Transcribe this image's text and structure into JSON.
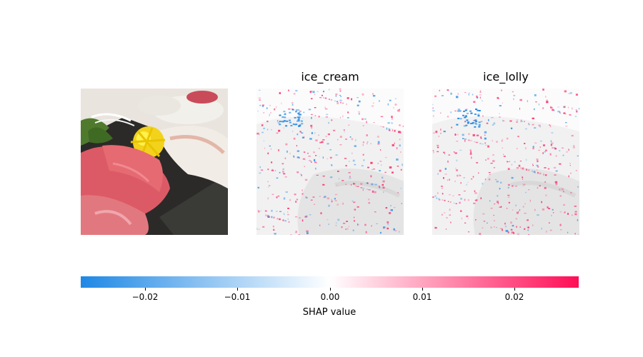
{
  "chart_data": {
    "type": "heatmap",
    "title": "",
    "panels": [
      {
        "role": "input-image",
        "label": ""
      },
      {
        "role": "shap-map",
        "label": "ice_cream"
      },
      {
        "role": "shap-map",
        "label": "ice_lolly"
      }
    ],
    "colorbar": {
      "label": "SHAP value",
      "range": [
        -0.027,
        0.027
      ],
      "ticks": [
        -0.02,
        -0.01,
        0.0,
        0.01,
        0.02
      ],
      "tick_labels": [
        "−0.02",
        "−0.01",
        "0.00",
        "0.01",
        "0.02"
      ],
      "colors": {
        "negative": "#1e88e5",
        "zero": "#ffffff",
        "positive": "#ff0d57"
      }
    }
  }
}
